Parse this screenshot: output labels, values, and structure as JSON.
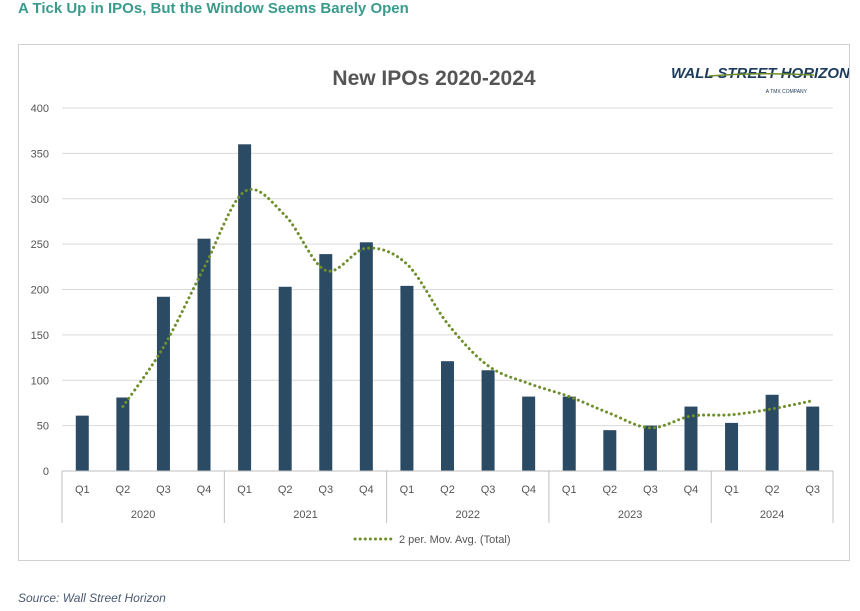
{
  "headline": "A Tick Up in IPOs, But the Window Seems Barely Open",
  "source": "Source: Wall Street Horizon",
  "logo": {
    "main": "WALL STREET HORIZON",
    "sub": "A TMX COMPANY"
  },
  "colors": {
    "bar": "#2b4a63",
    "moving_avg": "#6f8f2d",
    "headline": "#3a9a8c",
    "grid": "#d9d9d9"
  },
  "chart_data": {
    "type": "bar",
    "title": "New IPOs 2020-2024",
    "categories": [
      "Q1",
      "Q2",
      "Q3",
      "Q4",
      "Q1",
      "Q2",
      "Q3",
      "Q4",
      "Q1",
      "Q2",
      "Q3",
      "Q4",
      "Q1",
      "Q2",
      "Q3",
      "Q4",
      "Q1",
      "Q2",
      "Q3"
    ],
    "groups": [
      {
        "label": "2020",
        "count": 4
      },
      {
        "label": "2021",
        "count": 4
      },
      {
        "label": "2022",
        "count": 4
      },
      {
        "label": "2023",
        "count": 4
      },
      {
        "label": "2024",
        "count": 3
      }
    ],
    "values": [
      61,
      81,
      192,
      256,
      360,
      203,
      239,
      252,
      204,
      121,
      111,
      82,
      82,
      45,
      50,
      71,
      53,
      84,
      71
    ],
    "moving_avg": {
      "name": "2 per. Mov. Avg. (Total)",
      "values": [
        null,
        71,
        136.5,
        224,
        308,
        281.5,
        221,
        245.5,
        228,
        162.5,
        116,
        96.5,
        82,
        63.5,
        47.5,
        60.5,
        62,
        68.5,
        77.5
      ]
    },
    "ylim": [
      0,
      400
    ],
    "yticks": [
      0,
      50,
      100,
      150,
      200,
      250,
      300,
      350,
      400
    ],
    "legend_position": "bottom",
    "grid": true
  }
}
